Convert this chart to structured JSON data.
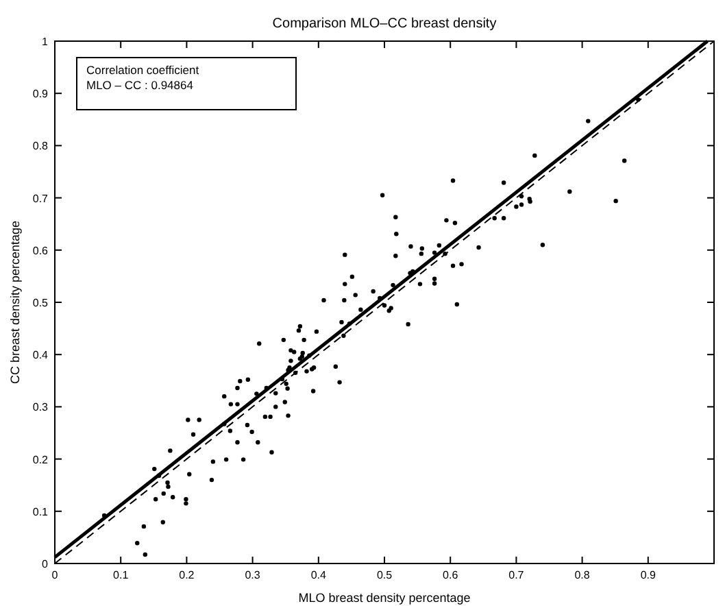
{
  "chart_data": {
    "type": "scatter",
    "title": "Comparison MLO–CC breast density",
    "xlabel": "MLO breast density percentage",
    "ylabel": "CC breast density percentage",
    "annotations": [
      "Correlation coefficient",
      "MLO – CC : 0.94864"
    ],
    "xlim": [
      0,
      1
    ],
    "ylim": [
      0,
      1
    ],
    "xticks": [
      0,
      0.1,
      0.2,
      0.3,
      0.4,
      0.5,
      0.6,
      0.7,
      0.8,
      0.9
    ],
    "yticks": [
      0,
      0.1,
      0.2,
      0.3,
      0.4,
      0.5,
      0.6,
      0.7,
      0.8,
      0.9,
      1
    ],
    "grid": false,
    "series": [
      {
        "color": "#000000",
        "marker": "circle",
        "x": [
          0.075,
          0.125,
          0.137,
          0.135,
          0.151,
          0.158,
          0.164,
          0.153,
          0.165,
          0.171,
          0.172,
          0.175,
          0.179,
          0.199,
          0.199,
          0.202,
          0.204,
          0.21,
          0.219,
          0.238,
          0.24,
          0.257,
          0.26,
          0.257,
          0.266,
          0.267,
          0.277,
          0.281,
          0.277,
          0.277,
          0.286,
          0.293,
          0.292,
          0.299,
          0.308,
          0.306,
          0.321,
          0.319,
          0.327,
          0.329,
          0.44,
          0.451,
          0.44,
          0.456,
          0.439,
          0.408,
          0.483,
          0.435,
          0.438,
          0.447,
          0.464,
          0.372,
          0.37,
          0.378,
          0.397,
          0.347,
          0.31,
          0.358,
          0.363,
          0.376,
          0.375,
          0.372,
          0.386,
          0.358,
          0.356,
          0.354,
          0.365,
          0.382,
          0.39,
          0.393,
          0.426,
          0.432,
          0.392,
          0.345,
          0.351,
          0.353,
          0.335,
          0.349,
          0.335,
          0.354,
          0.728,
          0.604,
          0.681,
          0.497,
          0.708,
          0.7,
          0.721,
          0.517,
          0.594,
          0.607,
          0.667,
          0.681,
          0.518,
          0.74,
          0.54,
          0.557,
          0.556,
          0.583,
          0.643,
          0.517,
          0.576,
          0.592,
          0.604,
          0.617,
          0.539,
          0.543,
          0.554,
          0.576,
          0.576,
          0.513,
          0.493,
          0.5,
          0.507,
          0.51,
          0.61,
          0.536,
          0.809,
          0.864,
          0.781,
          0.851,
          0.72,
          0.708,
          0.885
        ],
        "values": [
          0.092,
          0.039,
          0.017,
          0.071,
          0.181,
          0.168,
          0.079,
          0.123,
          0.134,
          0.155,
          0.147,
          0.216,
          0.127,
          0.123,
          0.115,
          0.275,
          0.171,
          0.247,
          0.275,
          0.16,
          0.195,
          0.32,
          0.199,
          0.267,
          0.254,
          0.305,
          0.336,
          0.349,
          0.305,
          0.232,
          0.199,
          0.352,
          0.265,
          0.252,
          0.232,
          0.325,
          0.336,
          0.281,
          0.281,
          0.213,
          0.591,
          0.549,
          0.535,
          0.514,
          0.504,
          0.504,
          0.521,
          0.462,
          0.436,
          0.459,
          0.486,
          0.454,
          0.446,
          0.428,
          0.444,
          0.428,
          0.421,
          0.408,
          0.405,
          0.403,
          0.396,
          0.392,
          0.398,
          0.388,
          0.375,
          0.37,
          0.365,
          0.368,
          0.372,
          0.375,
          0.377,
          0.347,
          0.33,
          0.353,
          0.344,
          0.335,
          0.326,
          0.309,
          0.3,
          0.283,
          0.781,
          0.733,
          0.729,
          0.705,
          0.703,
          0.683,
          0.693,
          0.663,
          0.657,
          0.652,
          0.661,
          0.661,
          0.631,
          0.61,
          0.607,
          0.603,
          0.593,
          0.609,
          0.605,
          0.589,
          0.595,
          0.593,
          0.57,
          0.573,
          0.556,
          0.559,
          0.535,
          0.545,
          0.536,
          0.533,
          0.508,
          0.494,
          0.484,
          0.489,
          0.496,
          0.458,
          0.847,
          0.771,
          0.712,
          0.694,
          0.698,
          0.687,
          0.888
        ]
      },
      {
        "type": "line",
        "color": "#000000",
        "line_style": "solid",
        "x": [
          0,
          0.99
        ],
        "values": [
          0.012,
          1
        ]
      },
      {
        "type": "line",
        "color": "#000000",
        "line_style": "dashed",
        "x": [
          0,
          1
        ],
        "values": [
          0,
          1
        ]
      }
    ]
  }
}
